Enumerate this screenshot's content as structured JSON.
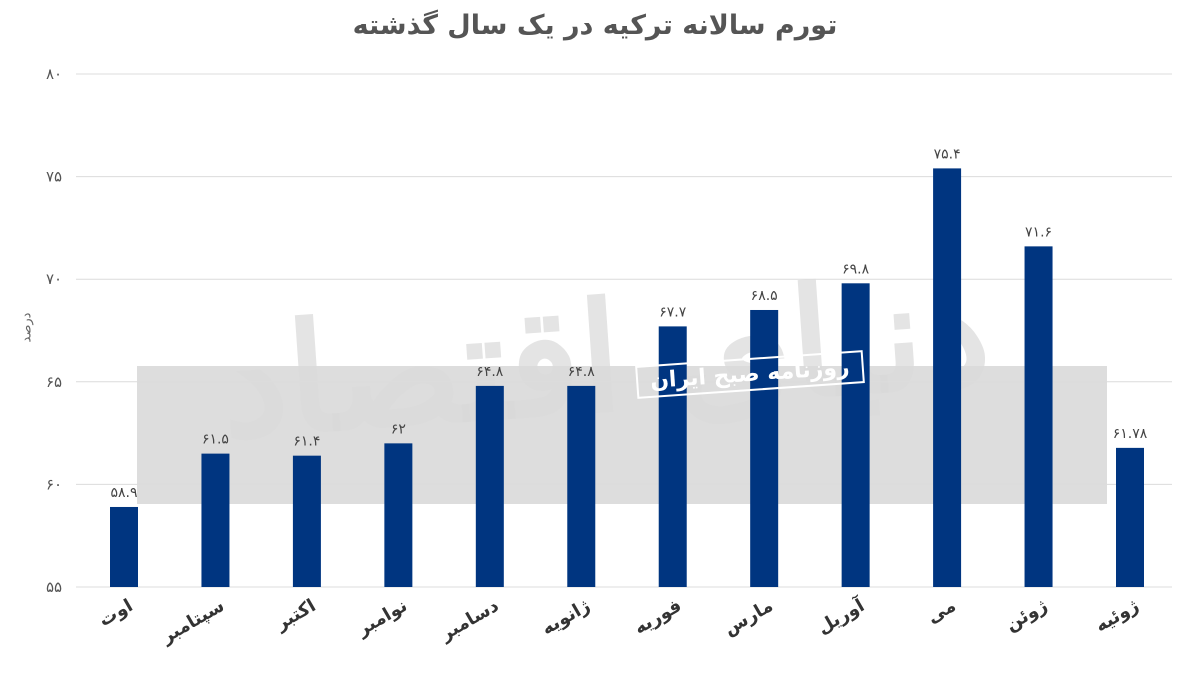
{
  "chart_data": {
    "type": "bar",
    "title": "تورم سالانه ترکیه در یک سال گذشته",
    "ylabel": "درصد",
    "xlabel": "",
    "ylim": [
      55,
      80
    ],
    "yticks": [
      55,
      60,
      65,
      70,
      75,
      80
    ],
    "ytick_labels": [
      "۵۵",
      "۶۰",
      "۶۵",
      "۷۰",
      "۷۵",
      "۸۰"
    ],
    "grid": true,
    "bar_color": "#003580",
    "categories": [
      "اوت",
      "سپتامبر",
      "اکتبر",
      "نوامبر",
      "دسامبر",
      "ژانویه",
      "فوریه",
      "مارس",
      "آوریل",
      "می",
      "ژوئن",
      "ژوئیه"
    ],
    "values": [
      58.9,
      61.5,
      61.4,
      62,
      64.8,
      64.8,
      67.7,
      68.5,
      69.8,
      75.4,
      71.6,
      61.78
    ],
    "value_labels": [
      "۵۸.۹",
      "۶۱.۵",
      "۶۱.۴",
      "۶۲",
      "۶۴.۸",
      "۶۴.۸",
      "۶۷.۷",
      "۶۸.۵",
      "۶۹.۸",
      "۷۵.۴",
      "۷۱.۶",
      "۶۱.۷۸"
    ]
  },
  "watermark": {
    "main": "دنیای اقتصاد",
    "sub": "روزنامه صبح ایران"
  }
}
